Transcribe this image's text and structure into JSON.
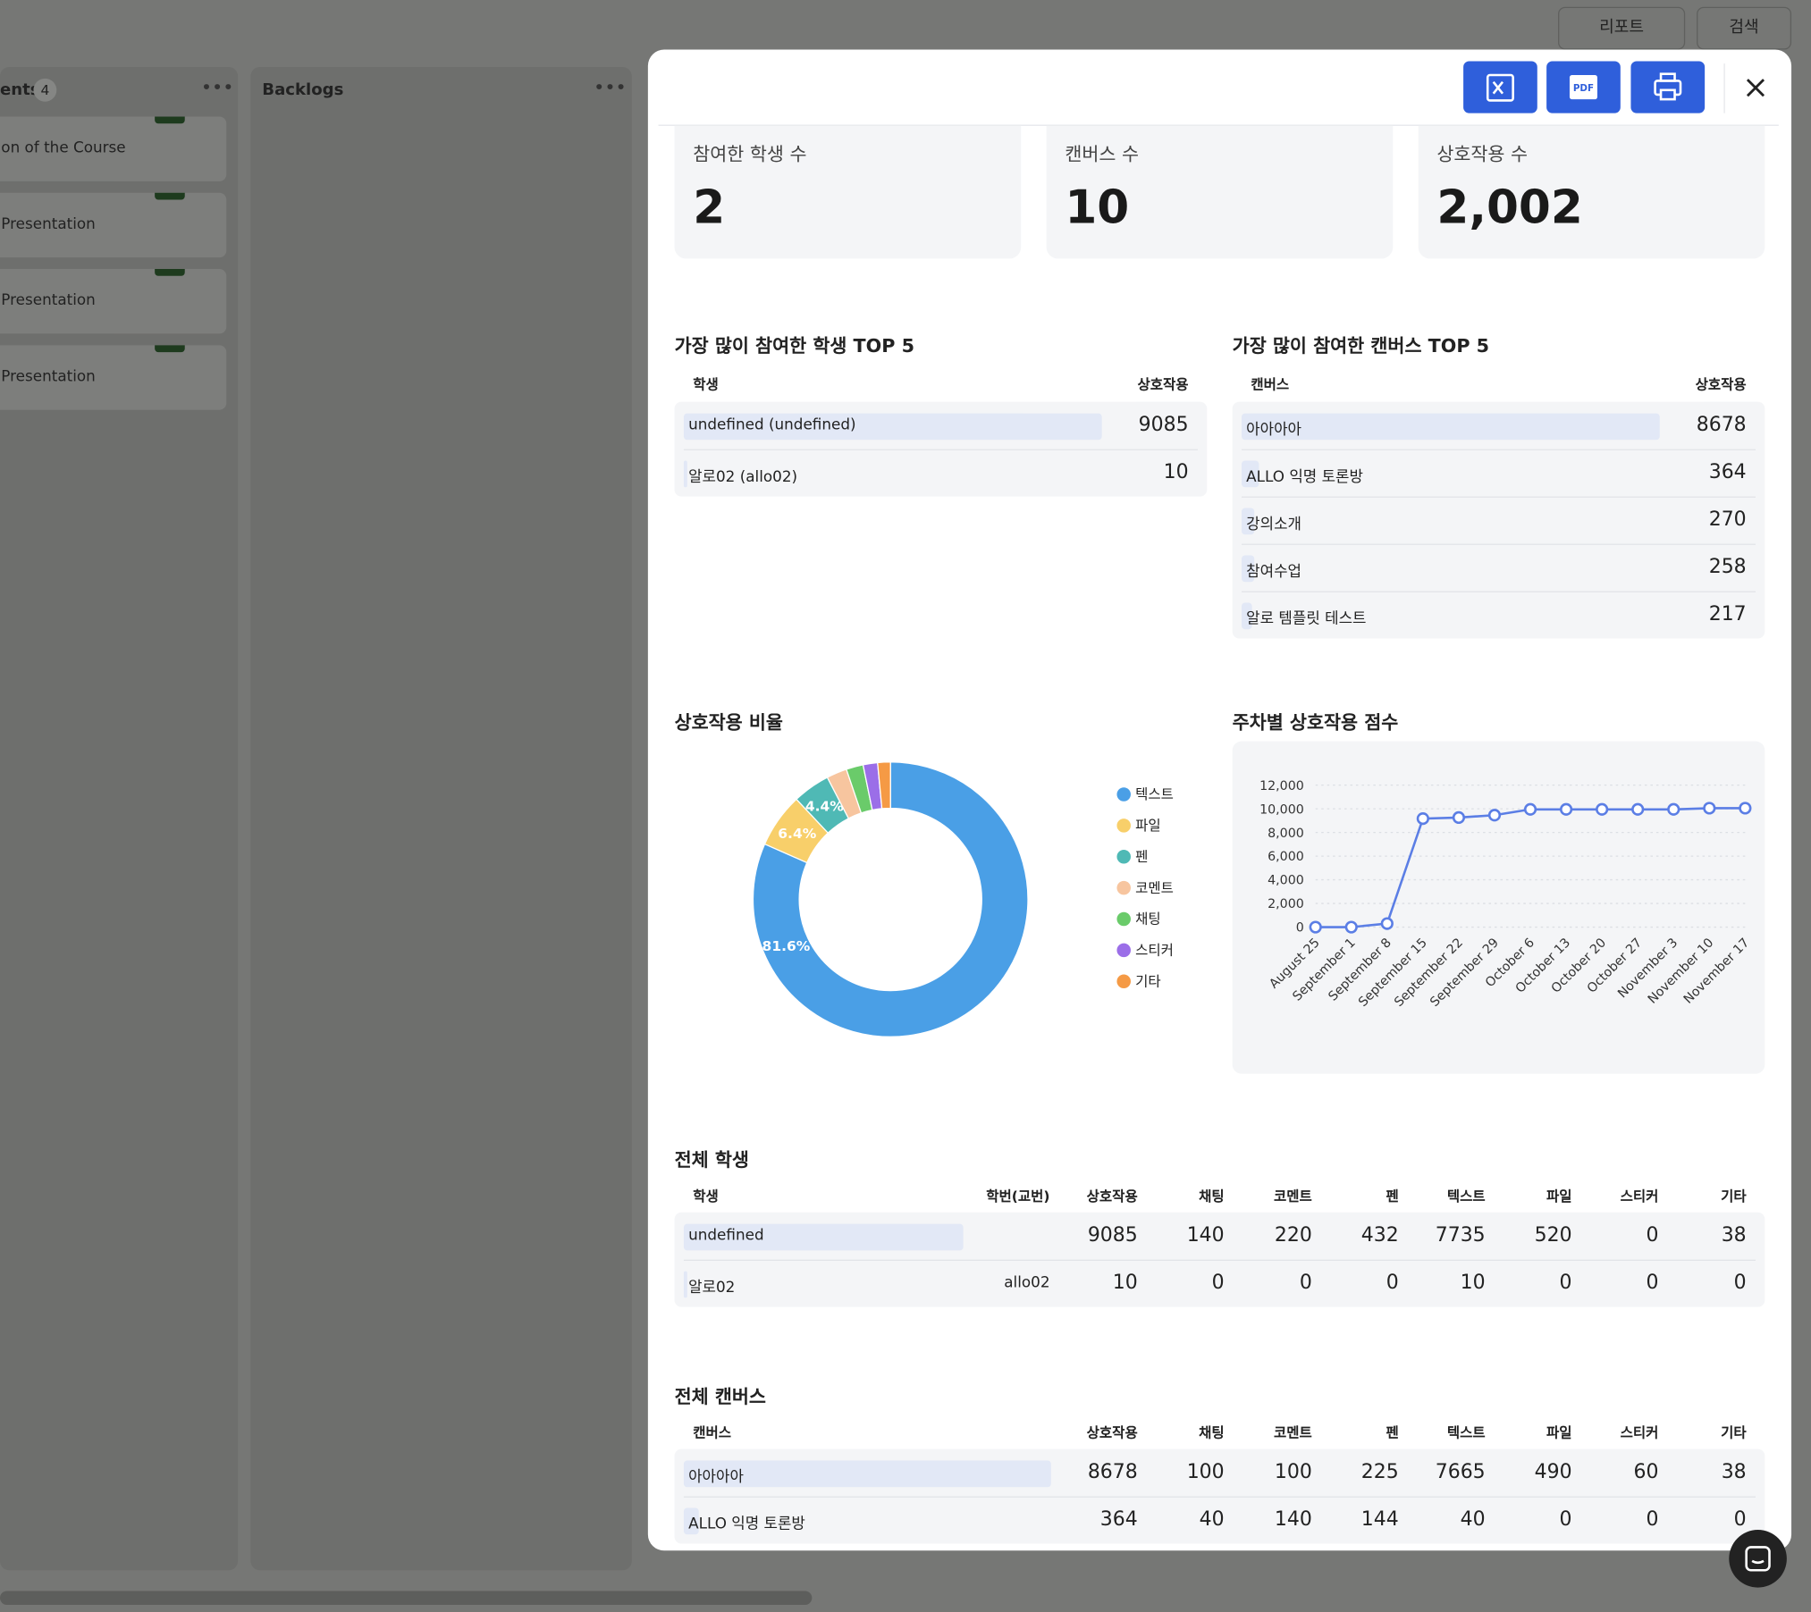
{
  "toolbar": {
    "report": "리포트",
    "search": "검색"
  },
  "board": {
    "columns": [
      {
        "title": "ents",
        "count": 4,
        "cards": [
          "on of the Course",
          "Presentation",
          "Presentation",
          "Presentation"
        ]
      },
      {
        "title": "Backlogs"
      }
    ]
  },
  "stats": [
    {
      "label": "참여한 학생 수",
      "value": "2"
    },
    {
      "label": "캔버스 수",
      "value": "10"
    },
    {
      "label": "상호작용 수",
      "value": "2,002"
    }
  ],
  "top_students": {
    "title": "가장 많이 참여한 학생 TOP 5",
    "headers": [
      "학생",
      "상호작용"
    ],
    "rows": [
      {
        "name": "undefined (undefined)",
        "value": 9085
      },
      {
        "name": "알로02 (allo02)",
        "value": 10
      }
    ]
  },
  "top_canvases": {
    "title": "가장 많이 참여한 캔버스 TOP 5",
    "headers": [
      "캔버스",
      "상호작용"
    ],
    "rows": [
      {
        "name": "아아아아",
        "value": 8678
      },
      {
        "name": "ALLO 익명 토론방",
        "value": 364
      },
      {
        "name": "강의소개",
        "value": 270
      },
      {
        "name": "참여수업",
        "value": 258
      },
      {
        "name": "알로 템플릿 테스트",
        "value": 217
      }
    ]
  },
  "donut": {
    "type": "pie",
    "title": "상호작용 비율",
    "categories": [
      "텍스트",
      "파일",
      "펜",
      "코멘트",
      "채팅",
      "스티커",
      "기타"
    ],
    "values": [
      81.6,
      6.4,
      4.4,
      2.4,
      2.0,
      1.7,
      1.5
    ],
    "value_labels": [
      "81.6%",
      "6.4%",
      "4.4%",
      null,
      null,
      null,
      null
    ],
    "colors": [
      "#4a9fe6",
      "#f8cf6a",
      "#4fb9b5",
      "#f7c59f",
      "#6acb6a",
      "#9b6ee8",
      "#f59a45"
    ]
  },
  "weekly": {
    "type": "line",
    "title": "주차별 상호작용 점수",
    "x": [
      "August 25",
      "September 1",
      "September 8",
      "September 15",
      "September 22",
      "September 29",
      "October 6",
      "October 13",
      "October 20",
      "October 27",
      "November 3",
      "November 10",
      "November 17"
    ],
    "values": [
      0,
      0,
      300,
      9170,
      9260,
      9460,
      9950,
      9950,
      9950,
      9950,
      9950,
      10050,
      10050
    ],
    "color": "#5b7ee5",
    "ylim": [
      0,
      12000
    ],
    "yticks": [
      0,
      {
        "value": 2000,
        "label": "2,000"
      },
      {
        "value": 4000,
        "label": "4,000"
      },
      {
        "value": 6000,
        "label": "6,000"
      },
      {
        "value": 8000,
        "label": "8,000"
      },
      {
        "value": 10000,
        "label": "10,000"
      },
      {
        "value": 12000,
        "label": "12,000"
      }
    ],
    "grid": true
  },
  "all_students": {
    "title": "전체 학생",
    "headers": [
      "학생",
      "학번(교번)",
      "상호작용",
      "채팅",
      "코멘트",
      "펜",
      "텍스트",
      "파일",
      "스티커",
      "기타"
    ],
    "rows": [
      [
        "undefined",
        null,
        9085,
        140,
        220,
        432,
        7735,
        520,
        0,
        38
      ],
      [
        "알로02",
        "allo02",
        10,
        0,
        0,
        0,
        10,
        0,
        0,
        0
      ]
    ]
  },
  "all_canvases": {
    "title": "전체 캔버스",
    "headers": [
      "캔버스",
      "상호작용",
      "채팅",
      "코멘트",
      "펜",
      "텍스트",
      "파일",
      "스티커",
      "기타"
    ],
    "rows": [
      [
        "아아아아",
        8678,
        100,
        100,
        225,
        7665,
        490,
        60,
        38
      ],
      [
        "ALLO 익명 토론방",
        364,
        40,
        140,
        144,
        40,
        0,
        0,
        0
      ]
    ]
  }
}
